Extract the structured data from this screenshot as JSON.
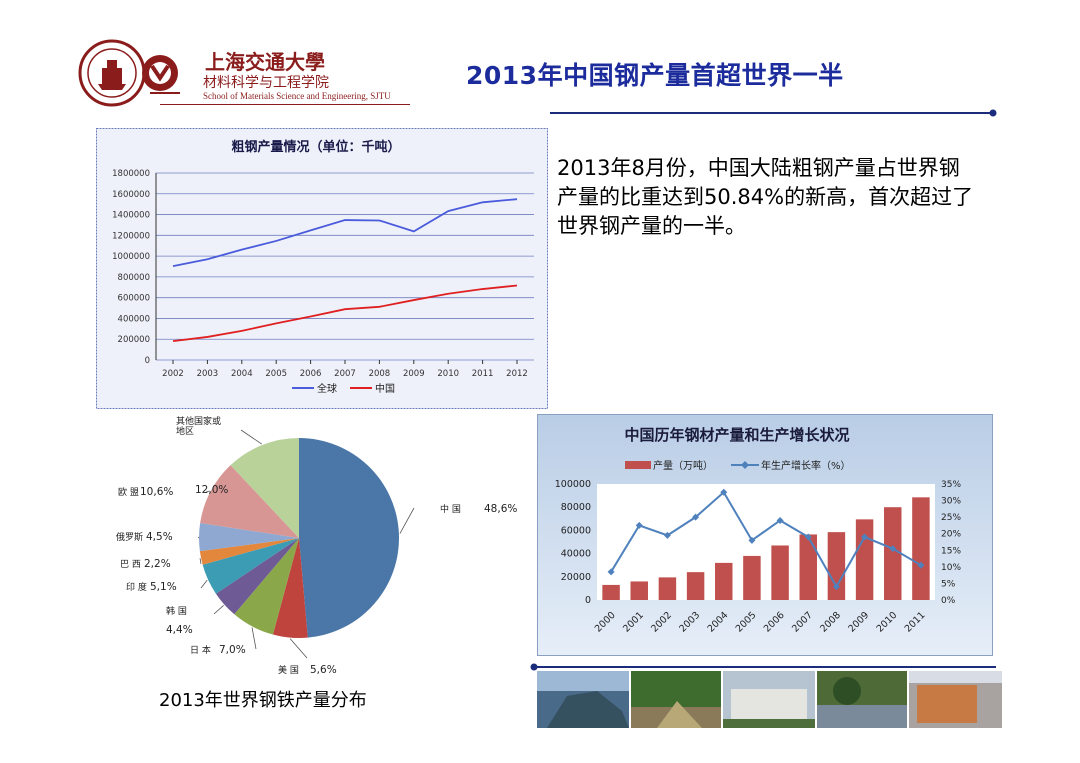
{
  "header": {
    "logo_cn_1": "上海交通大學",
    "logo_cn_2": "材料科学与工程学院",
    "logo_en": "School of Materials Science and Engineering, SJTU",
    "title": "2013年中国钢产量首超世界一半"
  },
  "body_text": "2013年8月份，中国大陆粗钢产量占世界钢产量的比重达到50.84%的新高，首次超过了世界钢产量的一半。",
  "pie_caption": "2013年世界钢铁产量分布",
  "colors": {
    "title_blue": "#1c2c9c",
    "logo_red": "#8b1c1c",
    "world_line": "#4a5bdc",
    "china_line": "#e02020",
    "bar_red": "#c0504d",
    "growth_line": "#4f81bd"
  },
  "chart_data": [
    {
      "type": "line",
      "title": "粗钢产量情况（单位：千吨）",
      "x": [
        2002,
        2003,
        2004,
        2005,
        2006,
        2007,
        2008,
        2009,
        2010,
        2011,
        2012
      ],
      "ylim": [
        0,
        1800000
      ],
      "yticks": [
        "0",
        "200000",
        "400000",
        "600000",
        "800000",
        "1000000",
        "1200000",
        "1400000",
        "1600000",
        "1800000"
      ],
      "grid": true,
      "legend_position": "bottom",
      "series": [
        {
          "name": "全球",
          "color": "#4a5bdc",
          "values": [
            904000,
            970000,
            1062000,
            1146000,
            1248000,
            1347000,
            1343000,
            1238000,
            1433000,
            1518000,
            1548000
          ]
        },
        {
          "name": "中国",
          "color": "#e02020",
          "values": [
            182000,
            222000,
            280000,
            353000,
            419000,
            489000,
            512000,
            577000,
            638000,
            683000,
            717000
          ]
        }
      ]
    },
    {
      "type": "pie",
      "title": "",
      "labels": [
        "中 国",
        "美 国",
        "日 本",
        "韩 国",
        "印 度",
        "巴 西",
        "俄罗斯",
        "欧 盟",
        "其他国家或地区"
      ],
      "label_lines": [
        [
          "中 国"
        ],
        [
          "美 国"
        ],
        [
          "日 本"
        ],
        [
          "韩 国"
        ],
        [
          "印 度"
        ],
        [
          "巴 西"
        ],
        [
          "俄罗斯"
        ],
        [
          "欧 盟"
        ],
        [
          "其他国家或",
          "地区"
        ]
      ],
      "value_labels": [
        "48,6%",
        "5,6%",
        "7,0%",
        "4,4%",
        "5,1%",
        "2,2%",
        "4,5%",
        "10,6%",
        "12,0%"
      ],
      "values": [
        48.6,
        5.6,
        7.0,
        4.4,
        5.1,
        2.2,
        4.5,
        10.6,
        12.0
      ],
      "colors": [
        "#4a76a8",
        "#c0443e",
        "#8aa84a",
        "#6e5b96",
        "#3c9cb4",
        "#e2873c",
        "#8fa8d2",
        "#d79694",
        "#b9d29a"
      ]
    },
    {
      "type": "bar",
      "title": "中国历年钢材产量和生产增长状况",
      "categories": [
        "2000",
        "2001",
        "2002",
        "2003",
        "2004",
        "2005",
        "2006",
        "2007",
        "2008",
        "2009",
        "2010",
        "2011"
      ],
      "ylim": [
        0,
        100000
      ],
      "yticks": [
        "0",
        "20000",
        "40000",
        "60000",
        "80000",
        "100000"
      ],
      "y2lim": [
        0,
        35
      ],
      "y2ticks": [
        "0%",
        "5%",
        "10%",
        "15%",
        "20%",
        "25%",
        "30%",
        "35%"
      ],
      "legend_position": "top",
      "series": [
        {
          "name": "产量（万吨）",
          "type": "bar",
          "color": "#c0504d",
          "values": [
            13000,
            16000,
            19500,
            24000,
            32000,
            38000,
            47000,
            56500,
            58500,
            69500,
            80000,
            88500
          ]
        },
        {
          "name": "年生产增长率（%）",
          "type": "line",
          "axis": "right",
          "color": "#4f81bd",
          "values": [
            8.5,
            22.5,
            19.5,
            25.0,
            32.5,
            18.0,
            24.0,
            19.0,
            4.0,
            19.0,
            15.5,
            10.5
          ]
        }
      ]
    }
  ]
}
